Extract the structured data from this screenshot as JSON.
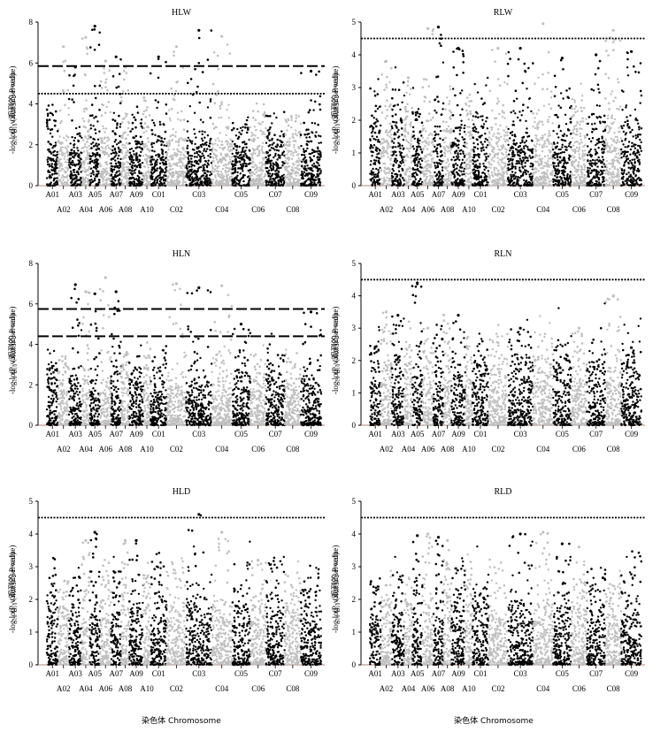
{
  "figure": {
    "chromosomes": [
      "A01",
      "A02",
      "A03",
      "A04",
      "A05",
      "A06",
      "A07",
      "A08",
      "A09",
      "A10",
      "C01",
      "C02",
      "C03",
      "C04",
      "C05",
      "C06",
      "C07",
      "C08",
      "C09"
    ],
    "ylabel_line1": "-log₁₀ (观测的 P-value)",
    "ylabel_line2": "-log₁₀ (P-value observed)",
    "xlabel": "染色体 Chromosome",
    "point_colors": [
      "#000000",
      "#bfbfbf"
    ]
  },
  "chart_data": [
    {
      "type": "scatter",
      "title": "HLW",
      "ylim": [
        0,
        8
      ],
      "yticks": [
        0,
        2,
        4,
        6,
        8
      ],
      "thresholds": [
        {
          "value": 5.85,
          "style": "dashed"
        },
        {
          "value": 4.5,
          "style": "dotted"
        }
      ],
      "peaks": [
        {
          "chr": "A02",
          "value": 6.8
        },
        {
          "chr": "A03",
          "value": 5.8
        },
        {
          "chr": "A04",
          "value": 7.25
        },
        {
          "chr": "A05",
          "value": 7.8
        },
        {
          "chr": "A06",
          "value": 6.1
        },
        {
          "chr": "A07",
          "value": 6.3
        },
        {
          "chr": "A08",
          "value": 5.8
        },
        {
          "chr": "C01",
          "value": 6.3
        },
        {
          "chr": "C02",
          "value": 6.8
        },
        {
          "chr": "C03",
          "value": 7.6
        },
        {
          "chr": "C04",
          "value": 7.3
        },
        {
          "chr": "C09",
          "value": 5.6
        }
      ]
    },
    {
      "type": "scatter",
      "title": "RLW",
      "ylim": [
        0,
        5
      ],
      "yticks": [
        0,
        1,
        2,
        3,
        4,
        5
      ],
      "thresholds": [
        {
          "value": 4.5,
          "style": "dotted"
        }
      ],
      "peaks": [
        {
          "chr": "A02",
          "value": 3.8
        },
        {
          "chr": "A04",
          "value": 3.3
        },
        {
          "chr": "A06",
          "value": 4.8
        },
        {
          "chr": "A07",
          "value": 4.85
        },
        {
          "chr": "A09",
          "value": 4.2
        },
        {
          "chr": "C02",
          "value": 4.2
        },
        {
          "chr": "C03",
          "value": 4.2
        },
        {
          "chr": "C04",
          "value": 4.95
        },
        {
          "chr": "C05",
          "value": 3.9
        },
        {
          "chr": "C07",
          "value": 4.0
        },
        {
          "chr": "C08",
          "value": 4.75
        },
        {
          "chr": "C09",
          "value": 4.1
        }
      ]
    },
    {
      "type": "scatter",
      "title": "HLN",
      "ylim": [
        0,
        8
      ],
      "yticks": [
        0,
        2,
        4,
        6,
        8
      ],
      "thresholds": [
        {
          "value": 5.75,
          "style": "dashed"
        },
        {
          "value": 4.4,
          "style": "dashed"
        }
      ],
      "peaks": [
        {
          "chr": "A03",
          "value": 6.95
        },
        {
          "chr": "A04",
          "value": 6.6
        },
        {
          "chr": "A05",
          "value": 6.5
        },
        {
          "chr": "A06",
          "value": 7.3
        },
        {
          "chr": "A07",
          "value": 6.6
        },
        {
          "chr": "C02",
          "value": 7.0
        },
        {
          "chr": "C03",
          "value": 6.8
        },
        {
          "chr": "C04",
          "value": 6.9
        },
        {
          "chr": "C05",
          "value": 5.0
        },
        {
          "chr": "C09",
          "value": 5.6
        }
      ]
    },
    {
      "type": "scatter",
      "title": "RLN",
      "ylim": [
        0,
        5
      ],
      "yticks": [
        0,
        1,
        2,
        3,
        4,
        5
      ],
      "thresholds": [
        {
          "value": 4.5,
          "style": "dotted"
        }
      ],
      "peaks": [
        {
          "chr": "A02",
          "value": 3.5
        },
        {
          "chr": "A03",
          "value": 3.4
        },
        {
          "chr": "A05",
          "value": 4.4
        },
        {
          "chr": "A06",
          "value": 3.0
        },
        {
          "chr": "A09",
          "value": 3.4
        },
        {
          "chr": "C03",
          "value": 3.0
        },
        {
          "chr": "C06",
          "value": 3.0
        },
        {
          "chr": "C08",
          "value": 4.0
        },
        {
          "chr": "C09",
          "value": 2.4
        }
      ]
    },
    {
      "type": "scatter",
      "title": "HLD",
      "ylim": [
        0,
        5
      ],
      "yticks": [
        0,
        1,
        2,
        3,
        4,
        5
      ],
      "thresholds": [
        {
          "value": 4.5,
          "style": "dotted"
        }
      ],
      "peaks": [
        {
          "chr": "A04",
          "value": 3.8
        },
        {
          "chr": "A05",
          "value": 4.05
        },
        {
          "chr": "A08",
          "value": 3.8
        },
        {
          "chr": "A09",
          "value": 3.8
        },
        {
          "chr": "C03",
          "value": 4.6
        },
        {
          "chr": "C04",
          "value": 4.05
        },
        {
          "chr": "C06",
          "value": 3.2
        }
      ]
    },
    {
      "type": "scatter",
      "title": "RLD",
      "ylim": [
        0,
        5
      ],
      "yticks": [
        0,
        1,
        2,
        3,
        4,
        5
      ],
      "thresholds": [
        {
          "value": 4.5,
          "style": "dotted"
        }
      ],
      "peaks": [
        {
          "chr": "A05",
          "value": 3.95
        },
        {
          "chr": "A06",
          "value": 4.0
        },
        {
          "chr": "A07",
          "value": 3.9
        },
        {
          "chr": "A08",
          "value": 3.8
        },
        {
          "chr": "C03",
          "value": 4.0
        },
        {
          "chr": "C04",
          "value": 4.05
        },
        {
          "chr": "C05",
          "value": 3.7
        },
        {
          "chr": "C06",
          "value": 3.6
        }
      ]
    }
  ]
}
